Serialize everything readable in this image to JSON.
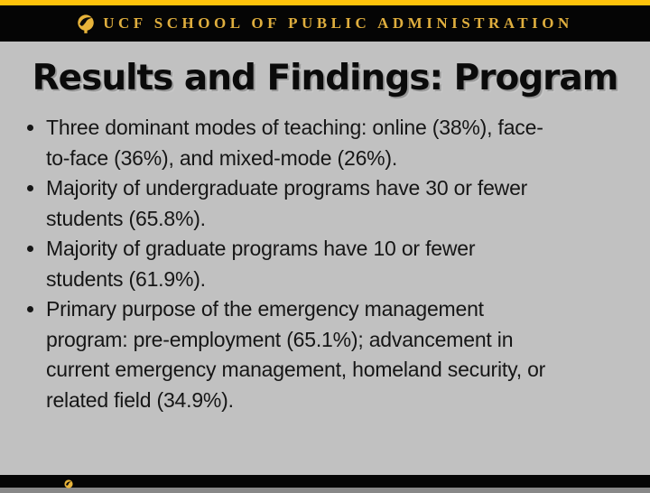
{
  "header": {
    "brand": "UCF SCHOOL OF PUBLIC ADMINISTRATION",
    "logo_icon": "ucf-pegasus-medallion"
  },
  "slide": {
    "title": "Results and Findings: Program",
    "bullets": [
      {
        "text": "Three dominant modes of teaching: online (38%), face-to-face (36%), and mixed-mode (26%).",
        "lines": [
          "Three dominant modes of teaching: online (38%), face-",
          "to-face (36%), and mixed-mode (26%)."
        ]
      },
      {
        "text": "Majority of undergraduate programs have 30 or fewer students (65.8%).",
        "lines": [
          "Majority of undergraduate programs have 30 or fewer",
          "students (65.8%)."
        ]
      },
      {
        "text": "Majority of graduate programs have 10 or fewer students (61.9%).",
        "lines": [
          "Majority of graduate programs have 10 or fewer",
          "students (61.9%)."
        ]
      },
      {
        "text": "Primary purpose of the emergency management program: pre-employment (65.1%); advancement in current emergency management, homeland security, or related field (34.9%).",
        "lines": [
          "Primary purpose of the emergency management",
          "program: pre-employment (65.1%); advancement in",
          "current emergency management, homeland security, or",
          "related field (34.9%)."
        ]
      }
    ]
  },
  "footer": {
    "logo_icon": "ucf-pegasus-medallion"
  },
  "colors": {
    "top_bar_gold": "#FFC30B",
    "header_text_gold": "#DFAE3E",
    "logo_gold": "#E8B43A",
    "background_gray": "#C1C1C1",
    "band_black": "#050505",
    "body_text": "#161616"
  }
}
